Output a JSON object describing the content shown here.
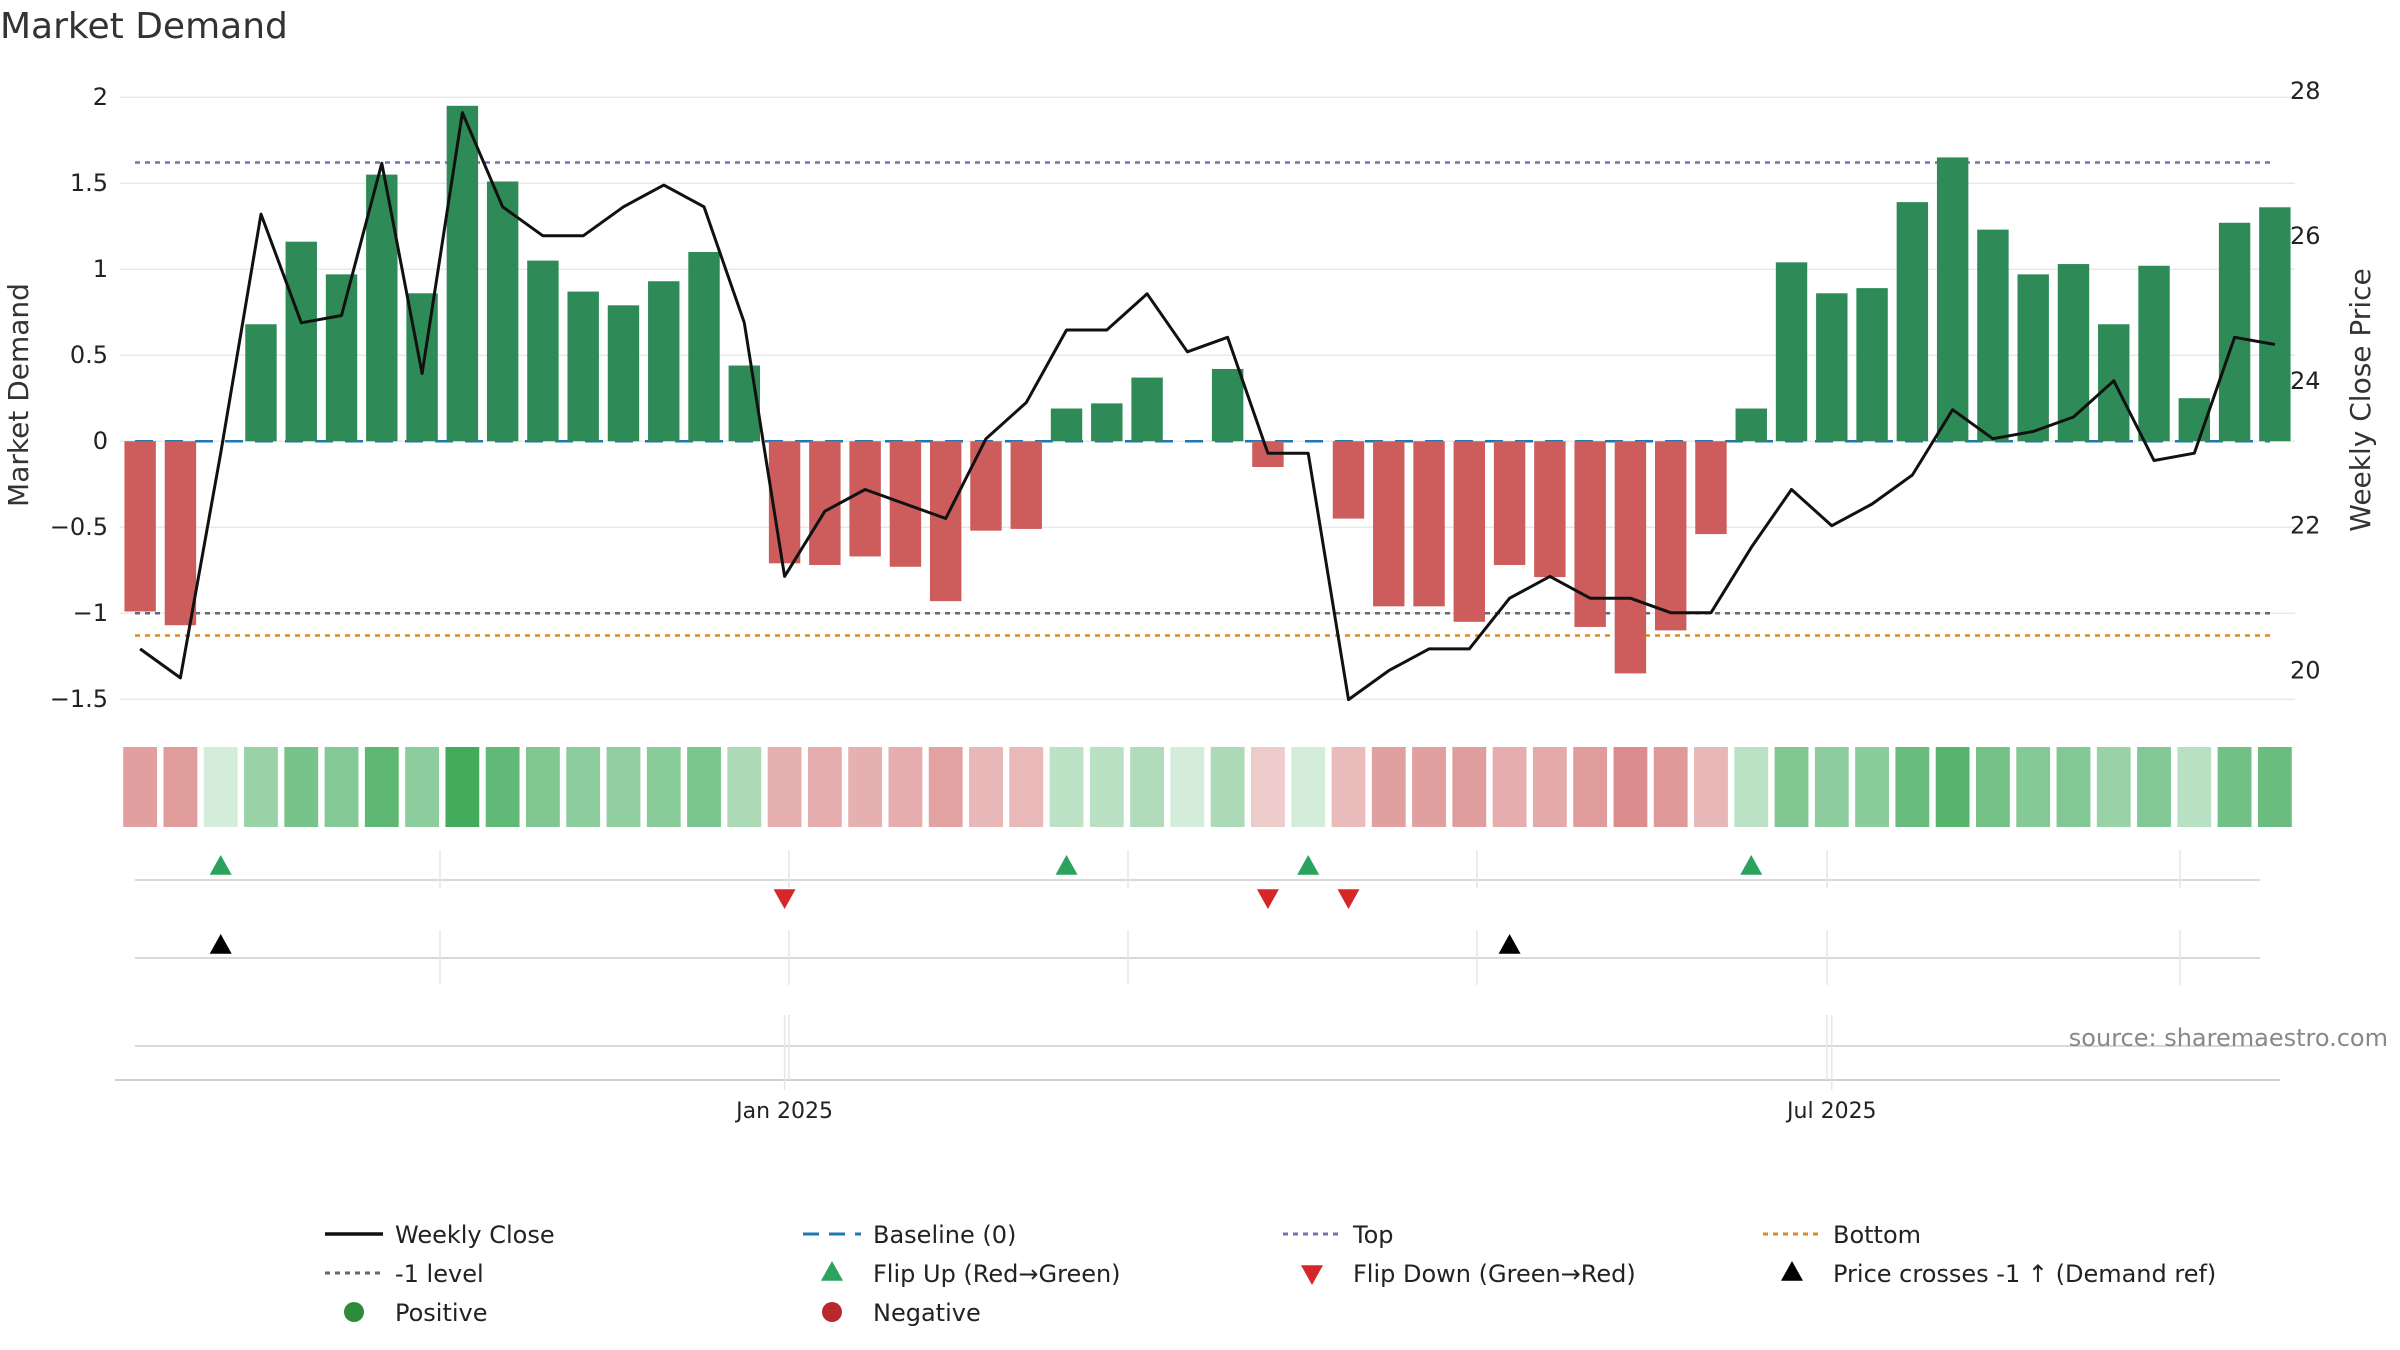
{
  "chart_data": {
    "type": "bar",
    "title": "Market Demand",
    "ylabel": "Market Demand",
    "y2label": "Weekly Close Price",
    "ylim": [
      -1.65,
      2.1
    ],
    "y2lim": [
      19.25,
      28.15
    ],
    "yticks": [
      2,
      1.5,
      1,
      0.5,
      0,
      -0.5,
      -1,
      -1.5
    ],
    "ytick_labels": [
      "2",
      "1.5",
      "1",
      "0.5",
      "0",
      "−0.5",
      "−1",
      "−1.5"
    ],
    "y2ticks": [
      28,
      26,
      24,
      22,
      20
    ],
    "y2tick_labels": [
      "28",
      "26",
      "24",
      "22",
      "20"
    ],
    "xticks": [
      {
        "index": 16.5,
        "label": "Jan 2025"
      },
      {
        "index": 42.5,
        "label": "Jul 2025"
      }
    ],
    "demand": [
      -0.99,
      -1.07,
      0.0,
      0.68,
      1.16,
      0.97,
      1.55,
      0.86,
      1.95,
      1.51,
      1.05,
      0.87,
      0.79,
      0.93,
      1.1,
      0.44,
      -0.71,
      -0.72,
      -0.67,
      -0.73,
      -0.93,
      -0.52,
      -0.51,
      0.19,
      0.22,
      0.37,
      0.0,
      0.42,
      -0.15,
      0.0,
      -0.45,
      -0.96,
      -0.96,
      -1.05,
      -0.72,
      -0.79,
      -1.08,
      -1.35,
      -1.1,
      -0.54,
      0.19,
      1.04,
      0.86,
      0.89,
      1.39,
      1.65,
      1.23,
      0.97,
      1.03,
      0.68,
      1.02,
      0.25,
      1.27,
      1.36
    ],
    "price": [
      20.3,
      19.9,
      23.0,
      26.3,
      24.8,
      24.9,
      27.0,
      24.1,
      27.7,
      26.4,
      26.0,
      26.0,
      26.4,
      26.7,
      26.4,
      24.8,
      21.3,
      22.2,
      22.5,
      22.3,
      22.1,
      23.2,
      23.7,
      24.7,
      24.7,
      25.2,
      24.4,
      24.6,
      23.0,
      23.0,
      19.6,
      20.0,
      20.3,
      20.3,
      21.0,
      21.3,
      21.0,
      21.0,
      20.8,
      20.8,
      21.7,
      22.5,
      22.0,
      22.3,
      22.7,
      23.6,
      23.2,
      23.3,
      23.5,
      24.0,
      22.9,
      23.0,
      24.6,
      24.5
    ],
    "reference_lines": {
      "top": 1.62,
      "bottom": -1.13,
      "minus_one": -1.0,
      "baseline": 0
    },
    "flip_up_index": [
      2,
      23,
      29,
      40
    ],
    "flip_down_index": [
      16,
      28,
      30
    ],
    "price_cross_index": [
      2,
      34
    ],
    "series": [
      {
        "name": "Weekly Close",
        "color": "#111111"
      },
      {
        "name": "Baseline (0)",
        "color": "#1f77b4"
      },
      {
        "name": "Top",
        "color": "#7570b3"
      },
      {
        "name": "Bottom",
        "color": "#e08a1e"
      },
      {
        "name": "-1 level",
        "color": "#666677"
      },
      {
        "name": "Flip Up (Red→Green)",
        "color": "#2ca25f"
      },
      {
        "name": "Flip Down (Green→Red)",
        "color": "#d62728"
      },
      {
        "name": "Price crosses -1 ↑ (Demand ref)",
        "color": "#000000"
      },
      {
        "name": "Positive",
        "color": "#2e8b3a"
      },
      {
        "name": "Negative",
        "color": "#b8282e"
      }
    ],
    "colors": {
      "positive_bar": "#2e8b57",
      "negative_bar": "#cd5c5c"
    }
  },
  "legend": [
    {
      "label": "Weekly Close",
      "marker": "line"
    },
    {
      "label": "Baseline (0)",
      "marker": "dash"
    },
    {
      "label": "Top",
      "marker": "dot"
    },
    {
      "label": "Bottom",
      "marker": "dot"
    },
    {
      "label": "-1 level",
      "marker": "dot"
    },
    {
      "label": "Flip Up (Red→Green)",
      "marker": "tri-up"
    },
    {
      "label": "Flip Down (Green→Red)",
      "marker": "tri-down"
    },
    {
      "label": "Price crosses -1 ↑ (Demand ref)",
      "marker": "tri-up"
    },
    {
      "label": "Positive",
      "marker": "circle"
    },
    {
      "label": "Negative",
      "marker": "circle"
    }
  ],
  "source": "source: sharemaestro.com"
}
